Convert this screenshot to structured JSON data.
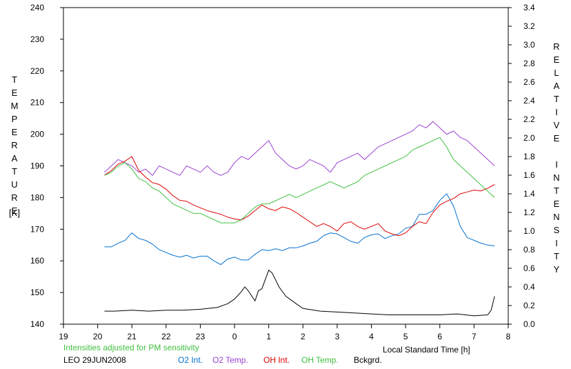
{
  "chart_data": {
    "type": "line",
    "ylabel_left": "TEMPERATURE",
    "ylabel_left_unit": "[K]",
    "ylabel_right": "RELATIVE INTENSITY",
    "xlabel": "Local Standard Time [h]",
    "note": "Intensities adjusted for PM sensitivity",
    "station_label": "LEO 29JUN2008",
    "x_range": [
      19,
      8
    ],
    "x_ticks": [
      "19",
      "20",
      "21",
      "22",
      "23",
      "0",
      "1",
      "2",
      "3",
      "4",
      "5",
      "6",
      "7",
      "8"
    ],
    "ylim_left": [
      140,
      240
    ],
    "yticks_left": [
      "140",
      "150",
      "160",
      "170",
      "180",
      "190",
      "200",
      "210",
      "220",
      "230",
      "240"
    ],
    "ylim_right": [
      0,
      3.4
    ],
    "yticks_right": [
      "0.0",
      "0.2",
      "0.4",
      "0.6",
      "0.8",
      "1.0",
      "1.2",
      "1.4",
      "1.6",
      "1.8",
      "2.0",
      "2.2",
      "2.4",
      "2.6",
      "2.8",
      "3.0",
      "3.2",
      "3.4"
    ],
    "grid": false,
    "legend_position": "bottom",
    "series": [
      {
        "name": "O2 Int.",
        "axis": "right",
        "color": "#0070d0",
        "x": [
          20.2,
          20.4,
          20.6,
          20.8,
          21.0,
          21.2,
          21.4,
          21.6,
          21.8,
          22.0,
          22.2,
          22.4,
          22.6,
          22.8,
          23.0,
          23.2,
          23.4,
          23.6,
          23.8,
          24.0,
          24.2,
          24.4,
          24.6,
          24.8,
          25.0,
          25.2,
          25.4,
          25.6,
          25.8,
          26.0,
          26.2,
          26.4,
          26.6,
          26.8,
          27.0,
          27.2,
          27.4,
          27.6,
          27.8,
          28.0,
          28.2,
          28.4,
          28.6,
          28.8,
          29.0,
          29.2,
          29.4,
          29.6,
          29.8,
          30.0,
          30.2,
          30.4,
          30.6,
          30.8,
          31.0,
          31.2,
          31.4,
          31.6
        ],
        "y": [
          0.83,
          0.83,
          0.87,
          0.9,
          0.98,
          0.92,
          0.9,
          0.86,
          0.8,
          0.77,
          0.74,
          0.72,
          0.74,
          0.71,
          0.73,
          0.73,
          0.68,
          0.64,
          0.7,
          0.72,
          0.69,
          0.69,
          0.75,
          0.8,
          0.79,
          0.81,
          0.79,
          0.82,
          0.82,
          0.84,
          0.87,
          0.89,
          0.95,
          0.98,
          0.97,
          0.93,
          0.89,
          0.87,
          0.93,
          0.96,
          0.97,
          0.92,
          0.95,
          0.97,
          1.03,
          1.05,
          1.18,
          1.18,
          1.22,
          1.33,
          1.4,
          1.27,
          1.05,
          0.93,
          0.9,
          0.87,
          0.85,
          0.84
        ]
      },
      {
        "name": "O2 Temp.",
        "axis": "left",
        "color": "#9a40d0",
        "x": [
          20.2,
          20.4,
          20.6,
          20.8,
          21.0,
          21.2,
          21.4,
          21.6,
          21.8,
          22.0,
          22.2,
          22.4,
          22.6,
          22.8,
          23.0,
          23.2,
          23.4,
          23.6,
          23.8,
          24.0,
          24.2,
          24.4,
          24.6,
          24.8,
          25.0,
          25.2,
          25.4,
          25.6,
          25.8,
          26.0,
          26.2,
          26.4,
          26.6,
          26.8,
          27.0,
          27.2,
          27.4,
          27.6,
          27.8,
          28.0,
          28.2,
          28.4,
          28.6,
          28.8,
          29.0,
          29.2,
          29.4,
          29.6,
          29.8,
          30.0,
          30.2,
          30.4,
          30.6,
          30.8,
          31.0,
          31.2,
          31.4,
          31.6
        ],
        "y": [
          188,
          190,
          192,
          191,
          190,
          188,
          189,
          187,
          190,
          189,
          188,
          187,
          190,
          189,
          188,
          190,
          188,
          187,
          188,
          191,
          193,
          192,
          194,
          196,
          198,
          194,
          192,
          190,
          189,
          190,
          192,
          191,
          190,
          188,
          191,
          192,
          193,
          194,
          192,
          194,
          196,
          197,
          198,
          199,
          200,
          201,
          203,
          202,
          204,
          202,
          200,
          201,
          199,
          198,
          196,
          194,
          192,
          190
        ]
      },
      {
        "name": "OH Int.",
        "axis": "right",
        "color": "#e00000",
        "x": [
          20.2,
          20.4,
          20.6,
          20.8,
          21.0,
          21.2,
          21.4,
          21.6,
          21.8,
          22.0,
          22.2,
          22.4,
          22.6,
          22.8,
          23.0,
          23.2,
          23.4,
          23.6,
          23.8,
          24.0,
          24.2,
          24.4,
          24.6,
          24.8,
          25.0,
          25.2,
          25.4,
          25.6,
          25.8,
          26.0,
          26.2,
          26.4,
          26.6,
          26.8,
          27.0,
          27.2,
          27.4,
          27.6,
          27.8,
          28.0,
          28.2,
          28.4,
          28.6,
          28.8,
          29.0,
          29.2,
          29.4,
          29.6,
          29.8,
          30.0,
          30.2,
          30.4,
          30.6,
          30.8,
          31.0,
          31.2,
          31.4,
          31.6
        ],
        "y": [
          1.6,
          1.65,
          1.72,
          1.75,
          1.8,
          1.65,
          1.58,
          1.52,
          1.5,
          1.45,
          1.38,
          1.33,
          1.32,
          1.28,
          1.25,
          1.22,
          1.2,
          1.18,
          1.15,
          1.13,
          1.12,
          1.16,
          1.22,
          1.28,
          1.24,
          1.22,
          1.26,
          1.24,
          1.2,
          1.15,
          1.1,
          1.05,
          1.08,
          1.05,
          1.0,
          1.08,
          1.1,
          1.05,
          1.02,
          1.05,
          1.08,
          1.0,
          0.97,
          0.95,
          0.98,
          1.05,
          1.1,
          1.08,
          1.2,
          1.28,
          1.32,
          1.35,
          1.4,
          1.42,
          1.44,
          1.43,
          1.46,
          1.5
        ]
      },
      {
        "name": "OH Temp.",
        "axis": "left",
        "color": "#40c040",
        "x": [
          20.2,
          20.4,
          20.6,
          20.8,
          21.0,
          21.2,
          21.4,
          21.6,
          21.8,
          22.0,
          22.2,
          22.4,
          22.6,
          22.8,
          23.0,
          23.2,
          23.4,
          23.6,
          23.8,
          24.0,
          24.2,
          24.4,
          24.6,
          24.8,
          25.0,
          25.2,
          25.4,
          25.6,
          25.8,
          26.0,
          26.2,
          26.4,
          26.6,
          26.8,
          27.0,
          27.2,
          27.4,
          27.6,
          27.8,
          28.0,
          28.2,
          28.4,
          28.6,
          28.8,
          29.0,
          29.2,
          29.4,
          29.6,
          29.8,
          30.0,
          30.2,
          30.4,
          30.6,
          30.8,
          31.0,
          31.2,
          31.4,
          31.6
        ],
        "y": [
          187,
          188,
          190,
          191,
          189,
          186,
          185,
          183,
          182,
          180,
          178,
          177,
          176,
          175,
          175,
          174,
          173,
          172,
          172,
          172,
          173,
          175,
          177,
          178,
          178,
          179,
          180,
          181,
          180,
          181,
          182,
          183,
          184,
          185,
          184,
          183,
          184,
          185,
          187,
          188,
          189,
          190,
          191,
          192,
          193,
          195,
          196,
          197,
          198,
          199,
          196,
          192,
          190,
          188,
          186,
          184,
          182,
          180
        ]
      },
      {
        "name": "Bckgrd.",
        "axis": "right",
        "color": "#000000",
        "x": [
          20.2,
          20.5,
          21.0,
          21.5,
          22.0,
          22.5,
          23.0,
          23.5,
          23.8,
          24.0,
          24.2,
          24.3,
          24.4,
          24.6,
          24.7,
          24.8,
          24.9,
          25.0,
          25.1,
          25.3,
          25.5,
          25.8,
          26.0,
          26.5,
          27.0,
          27.5,
          28.0,
          28.5,
          29.0,
          29.5,
          30.0,
          30.5,
          31.0,
          31.4,
          31.5,
          31.6
        ],
        "y": [
          0.14,
          0.14,
          0.15,
          0.14,
          0.15,
          0.15,
          0.16,
          0.18,
          0.22,
          0.27,
          0.35,
          0.4,
          0.36,
          0.25,
          0.36,
          0.38,
          0.48,
          0.58,
          0.55,
          0.4,
          0.3,
          0.22,
          0.17,
          0.14,
          0.13,
          0.12,
          0.11,
          0.1,
          0.1,
          0.1,
          0.1,
          0.11,
          0.09,
          0.1,
          0.15,
          0.3
        ]
      }
    ]
  }
}
